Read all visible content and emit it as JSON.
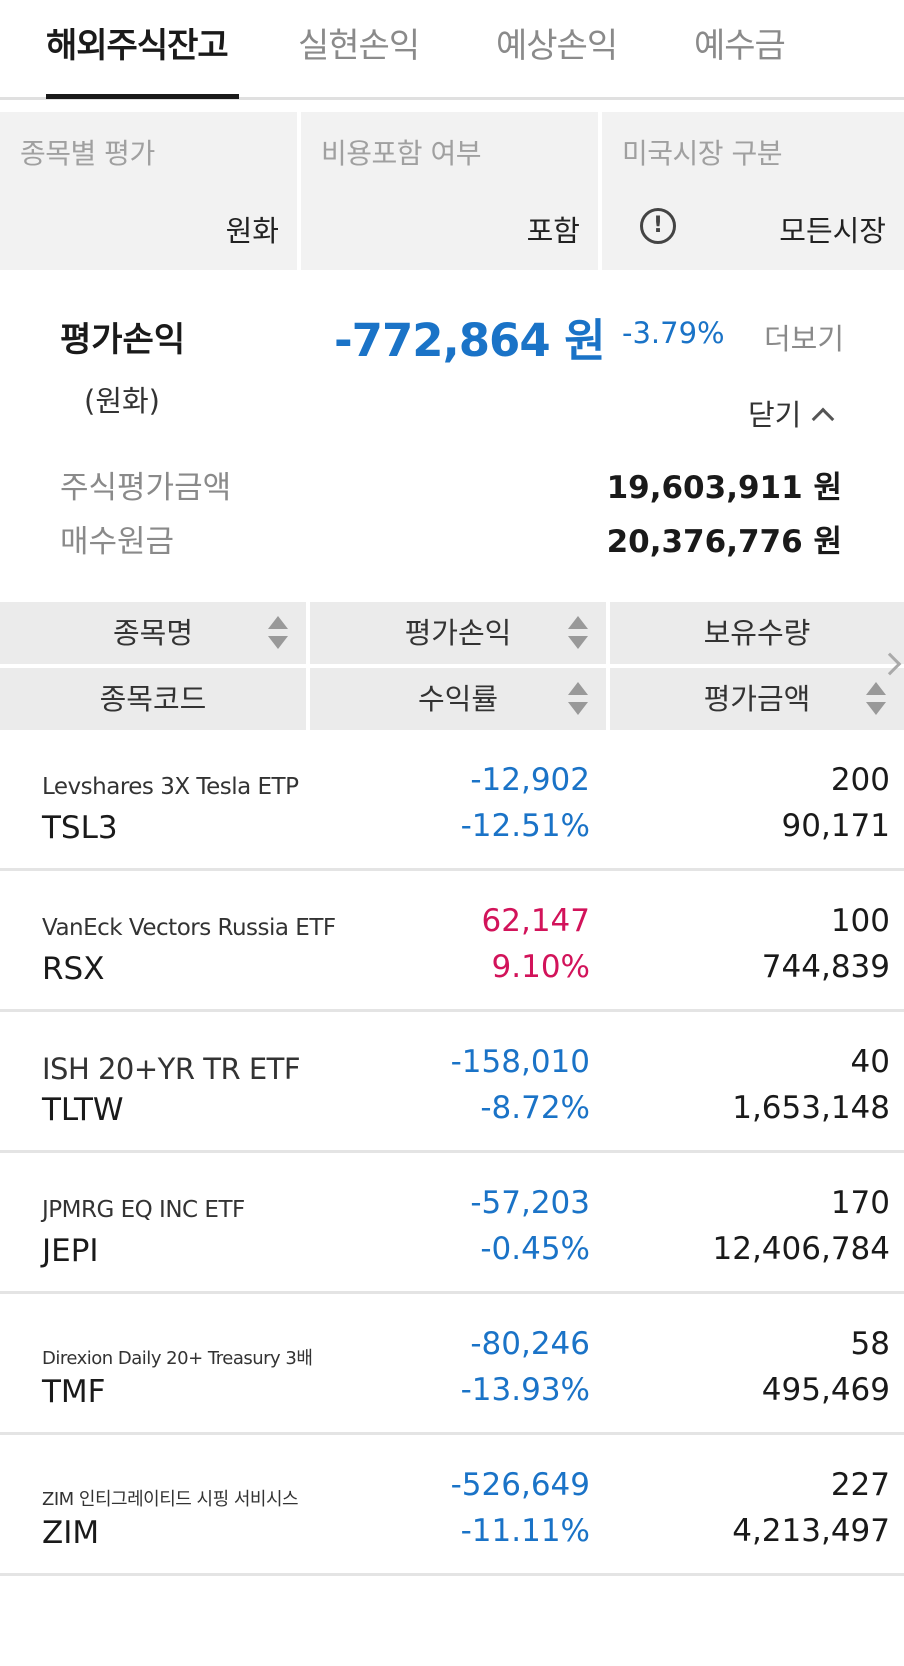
{
  "tabs": [
    {
      "label": "해외주식잔고",
      "active": true
    },
    {
      "label": "실현손익",
      "active": false
    },
    {
      "label": "예상손익",
      "active": false
    },
    {
      "label": "예수금",
      "active": false
    }
  ],
  "filters": [
    {
      "label": "종목별 평가",
      "value": "원화"
    },
    {
      "label": "비용포함 여부",
      "value": "포함"
    },
    {
      "label": "미국시장 구분",
      "value": "모든시장",
      "icon": "info-icon"
    }
  ],
  "summary": {
    "label": "평가손익",
    "sublabel": "(원화)",
    "amount": "-772,864 원",
    "rate": "-3.79%",
    "more": "더보기",
    "close": "닫기",
    "stock_eval_label": "주식평가금액",
    "stock_eval_value": "19,603,911 원",
    "purchase_label": "매수원금",
    "purchase_value": "20,376,776 원"
  },
  "table_header": {
    "col1_top": "종목명",
    "col1_bottom": "종목코드",
    "col2_top": "평가손익",
    "col2_bottom": "수익률",
    "col3_top": "보유수량",
    "col3_bottom": "평가금액"
  },
  "holdings": [
    {
      "name": "Levshares 3X Tesla ETP",
      "code": "TSL3",
      "pl": "-12,902",
      "rate": "-12.51%",
      "qty": "200",
      "eval": "90,171",
      "sign": "neg",
      "size": "medium"
    },
    {
      "name": "VanEck Vectors Russia ETF",
      "code": "RSX",
      "pl": "62,147",
      "rate": "9.10%",
      "qty": "100",
      "eval": "744,839",
      "sign": "pos",
      "size": "medium"
    },
    {
      "name": "ISH 20+YR TR ETF",
      "code": "TLTW",
      "pl": "-158,010",
      "rate": "-8.72%",
      "qty": "40",
      "eval": "1,653,148",
      "sign": "neg",
      "size": "large"
    },
    {
      "name": "JPMRG EQ INC ETF",
      "code": "JEPI",
      "pl": "-57,203",
      "rate": "-0.45%",
      "qty": "170",
      "eval": "12,406,784",
      "sign": "neg",
      "size": "medium"
    },
    {
      "name": "Direxion Daily 20+ Treasury 3배",
      "code": "TMF",
      "pl": "-80,246",
      "rate": "-13.93%",
      "qty": "58",
      "eval": "495,469",
      "sign": "neg",
      "size": "small"
    },
    {
      "name": "ZIM 인티그레이티드 시핑 서비시스",
      "code": "ZIM",
      "pl": "-526,649",
      "rate": "-11.11%",
      "qty": "227",
      "eval": "4,213,497",
      "sign": "neg",
      "size": "small"
    }
  ],
  "colors": {
    "negative": "#1a73c7",
    "positive": "#d2135a",
    "header_bg": "#ebebeb",
    "filter_bg": "#f2f2f2"
  }
}
